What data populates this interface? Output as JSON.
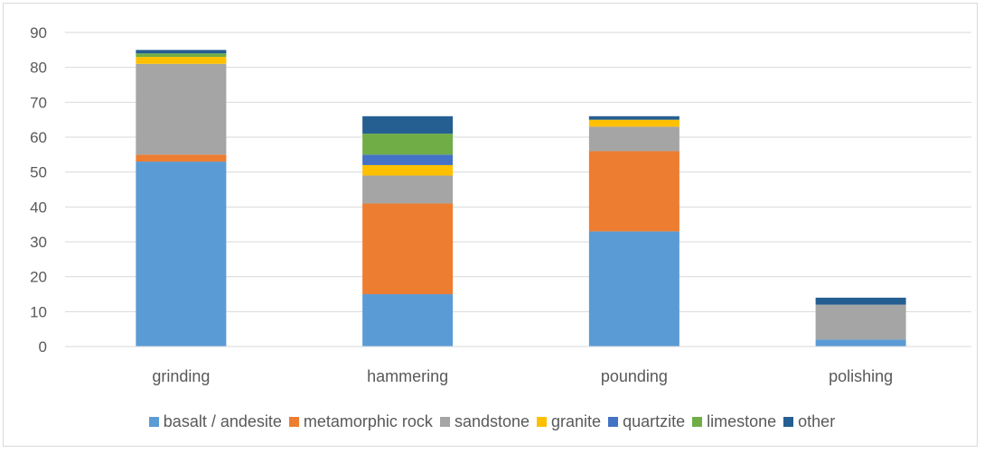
{
  "chart_data": {
    "type": "bar",
    "stacked": true,
    "categories": [
      "grinding",
      "hammering",
      "pounding",
      "polishing"
    ],
    "series": [
      {
        "name": "basalt / andesite",
        "color": "#5b9bd5",
        "values": [
          53,
          15,
          33,
          2
        ]
      },
      {
        "name": "metamorphic rock",
        "color": "#ed7d31",
        "values": [
          2,
          26,
          23,
          0
        ]
      },
      {
        "name": "sandstone",
        "color": "#a5a5a5",
        "values": [
          26,
          8,
          7,
          10
        ]
      },
      {
        "name": "granite",
        "color": "#ffc000",
        "values": [
          2,
          3,
          2,
          0
        ]
      },
      {
        "name": "quartzite",
        "color": "#4472c4",
        "values": [
          0,
          3,
          0,
          0
        ]
      },
      {
        "name": "limestone",
        "color": "#70ad47",
        "values": [
          1,
          6,
          0,
          0
        ]
      },
      {
        "name": "other",
        "color": "#255e91",
        "values": [
          1,
          5,
          1,
          2
        ]
      }
    ],
    "y_ticks": [
      "0",
      "10",
      "20",
      "30",
      "40",
      "50",
      "60",
      "70",
      "80",
      "90"
    ],
    "ylim": [
      0,
      90
    ],
    "grid": true,
    "legend_position": "bottom"
  }
}
